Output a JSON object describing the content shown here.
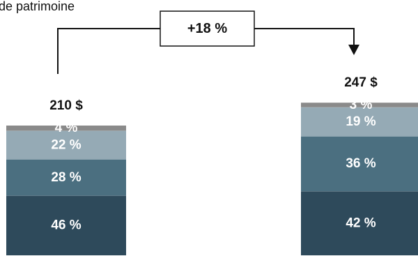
{
  "chart_data": {
    "type": "bar",
    "stacked": true,
    "title": "de patrimoine",
    "categories": [
      "",
      ""
    ],
    "unit": "$",
    "totals": [
      210,
      247
    ],
    "total_labels": [
      "210 $",
      "247 $"
    ],
    "segments": [
      {
        "color": "#2e4a5b",
        "values": [
          46,
          42
        ],
        "labels": [
          "46 %",
          "42 %"
        ]
      },
      {
        "color": "#4b6f80",
        "values": [
          28,
          36
        ],
        "labels": [
          "28 %",
          "36 %"
        ]
      },
      {
        "color": "#95aab5",
        "values": [
          22,
          19
        ],
        "labels": [
          "22 %",
          "19 %"
        ]
      },
      {
        "color": "#8a8a8a",
        "values": [
          4,
          3
        ],
        "labels": [
          "4 %",
          "3 %"
        ]
      }
    ],
    "growth": {
      "value": 18,
      "label": "+18 %"
    }
  }
}
